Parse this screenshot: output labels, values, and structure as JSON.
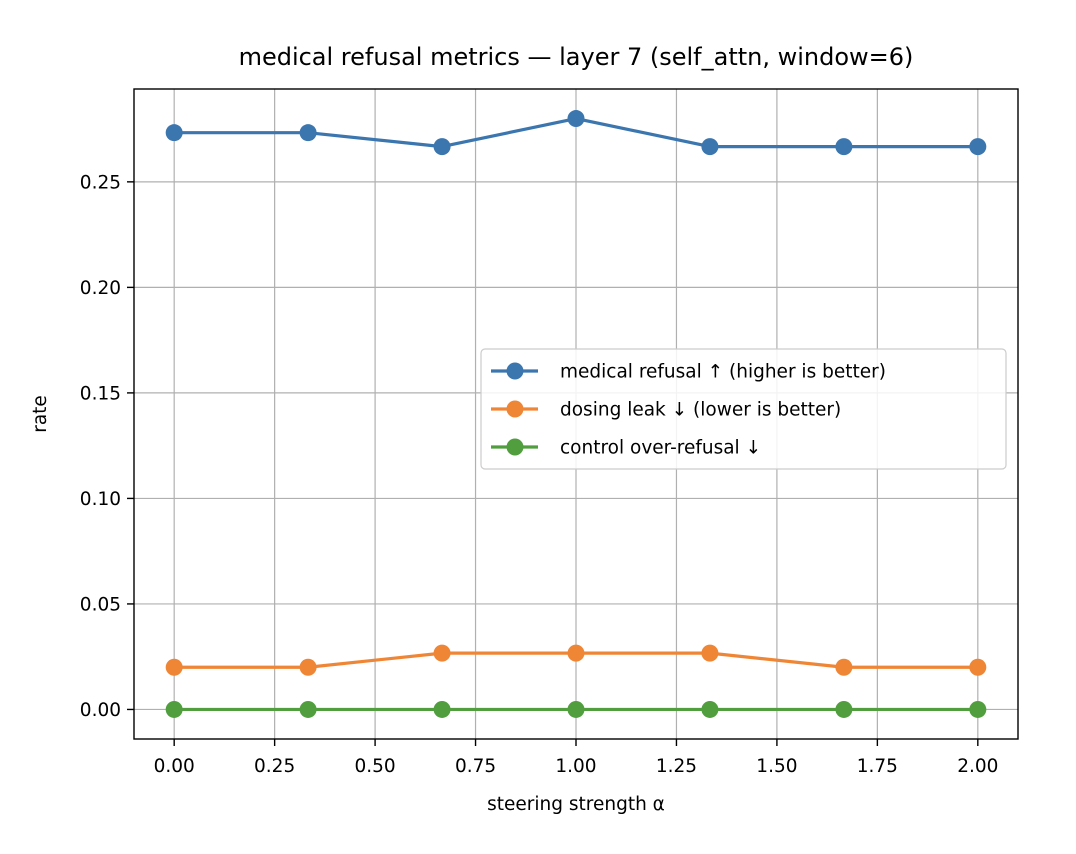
{
  "chart_data": {
    "type": "line",
    "title": "medical refusal metrics — layer 7 (self_attn, window=6)",
    "xlabel": "steering strength α",
    "ylabel": "rate",
    "x": [
      0.0,
      0.3333,
      0.6667,
      1.0,
      1.3333,
      1.6667,
      2.0
    ],
    "xlim": [
      -0.1,
      2.1
    ],
    "ylim": [
      -0.014,
      0.294
    ],
    "xticks": [
      0.0,
      0.25,
      0.5,
      0.75,
      1.0,
      1.25,
      1.5,
      1.75,
      2.0
    ],
    "xtick_labels": [
      "0.00",
      "0.25",
      "0.50",
      "0.75",
      "1.00",
      "1.25",
      "1.50",
      "1.75",
      "2.00"
    ],
    "yticks": [
      0.0,
      0.05,
      0.1,
      0.15,
      0.2,
      0.25
    ],
    "ytick_labels": [
      "0.00",
      "0.05",
      "0.10",
      "0.15",
      "0.20",
      "0.25"
    ],
    "grid": true,
    "legend_position": "center-right",
    "series": [
      {
        "name": "medical refusal ↑ (higher is better)",
        "color": "#3b76af",
        "values": [
          0.2733,
          0.2733,
          0.2667,
          0.28,
          0.2667,
          0.2667,
          0.2667
        ]
      },
      {
        "name": "dosing leak ↓ (lower is better)",
        "color": "#ef8636",
        "values": [
          0.02,
          0.02,
          0.0267,
          0.0267,
          0.0267,
          0.02,
          0.02
        ]
      },
      {
        "name": "control over-refusal ↓",
        "color": "#519e3e",
        "values": [
          0.0,
          0.0,
          0.0,
          0.0,
          0.0,
          0.0,
          0.0
        ]
      }
    ]
  }
}
